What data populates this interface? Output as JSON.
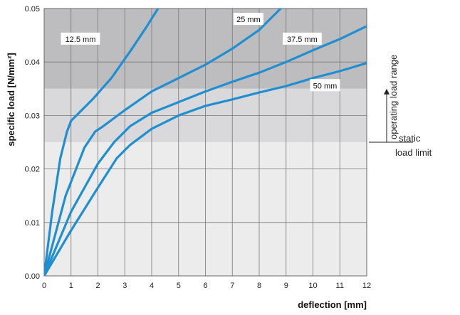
{
  "chart_data": {
    "type": "line",
    "xlabel": "deflection [mm]",
    "ylabel": "specific load [N/mm²]",
    "xlim": [
      0,
      12
    ],
    "ylim": [
      0,
      0.05
    ],
    "x_ticks": [
      "0",
      "1",
      "2",
      "3",
      "4",
      "5",
      "6",
      "7",
      "8",
      "9",
      "10",
      "11",
      "12"
    ],
    "y_ticks": [
      "0.00",
      "0.01",
      "0.02",
      "0.03",
      "0.04",
      "0.05"
    ],
    "grid": true,
    "line_color": "#1f8fd1",
    "bands": [
      {
        "from": 0.035,
        "to": 0.05,
        "color": "#bdbdbf"
      },
      {
        "from": 0.025,
        "to": 0.035,
        "color": "#d9d9db"
      },
      {
        "from": 0,
        "to": 0.025,
        "color": "#ececed"
      }
    ],
    "series": [
      {
        "name": "12.5 mm",
        "x": [
          0,
          0.3,
          0.6,
          0.85,
          1.0,
          1.2,
          1.8,
          2.5,
          3.2,
          3.8,
          4.3
        ],
        "y": [
          0,
          0.012,
          0.022,
          0.027,
          0.029,
          0.03,
          0.033,
          0.037,
          0.042,
          0.0465,
          0.0505
        ]
      },
      {
        "name": "25 mm",
        "x": [
          0,
          0.8,
          1.5,
          1.9,
          2.2,
          3.0,
          4.0,
          5.0,
          6.0,
          7.0,
          8.0,
          8.9
        ],
        "y": [
          0,
          0.015,
          0.024,
          0.027,
          0.028,
          0.031,
          0.0345,
          0.037,
          0.0395,
          0.0425,
          0.046,
          0.0505
        ]
      },
      {
        "name": "37.5 mm",
        "x": [
          0,
          1.0,
          2.0,
          2.6,
          3.2,
          4.0,
          5.0,
          6.0,
          7.0,
          8.0,
          9.0,
          10.0,
          11.0,
          12.0
        ],
        "y": [
          0,
          0.012,
          0.021,
          0.025,
          0.028,
          0.0305,
          0.0325,
          0.0345,
          0.0363,
          0.038,
          0.04,
          0.0422,
          0.0443,
          0.0467
        ]
      },
      {
        "name": "50 mm",
        "x": [
          0,
          1.0,
          2.0,
          2.7,
          3.2,
          4.0,
          5.0,
          6.0,
          7.0,
          8.0,
          9.0,
          10.0,
          11.0,
          12.0
        ],
        "y": [
          0,
          0.0085,
          0.0165,
          0.022,
          0.0245,
          0.0275,
          0.03,
          0.0318,
          0.033,
          0.0343,
          0.0355,
          0.037,
          0.0383,
          0.0398
        ]
      }
    ],
    "annotations": {
      "range_label": "operating load range",
      "limit_label_line1": "static",
      "limit_label_line2": "load limit",
      "range_from": 0.025,
      "range_to": 0.035
    }
  }
}
